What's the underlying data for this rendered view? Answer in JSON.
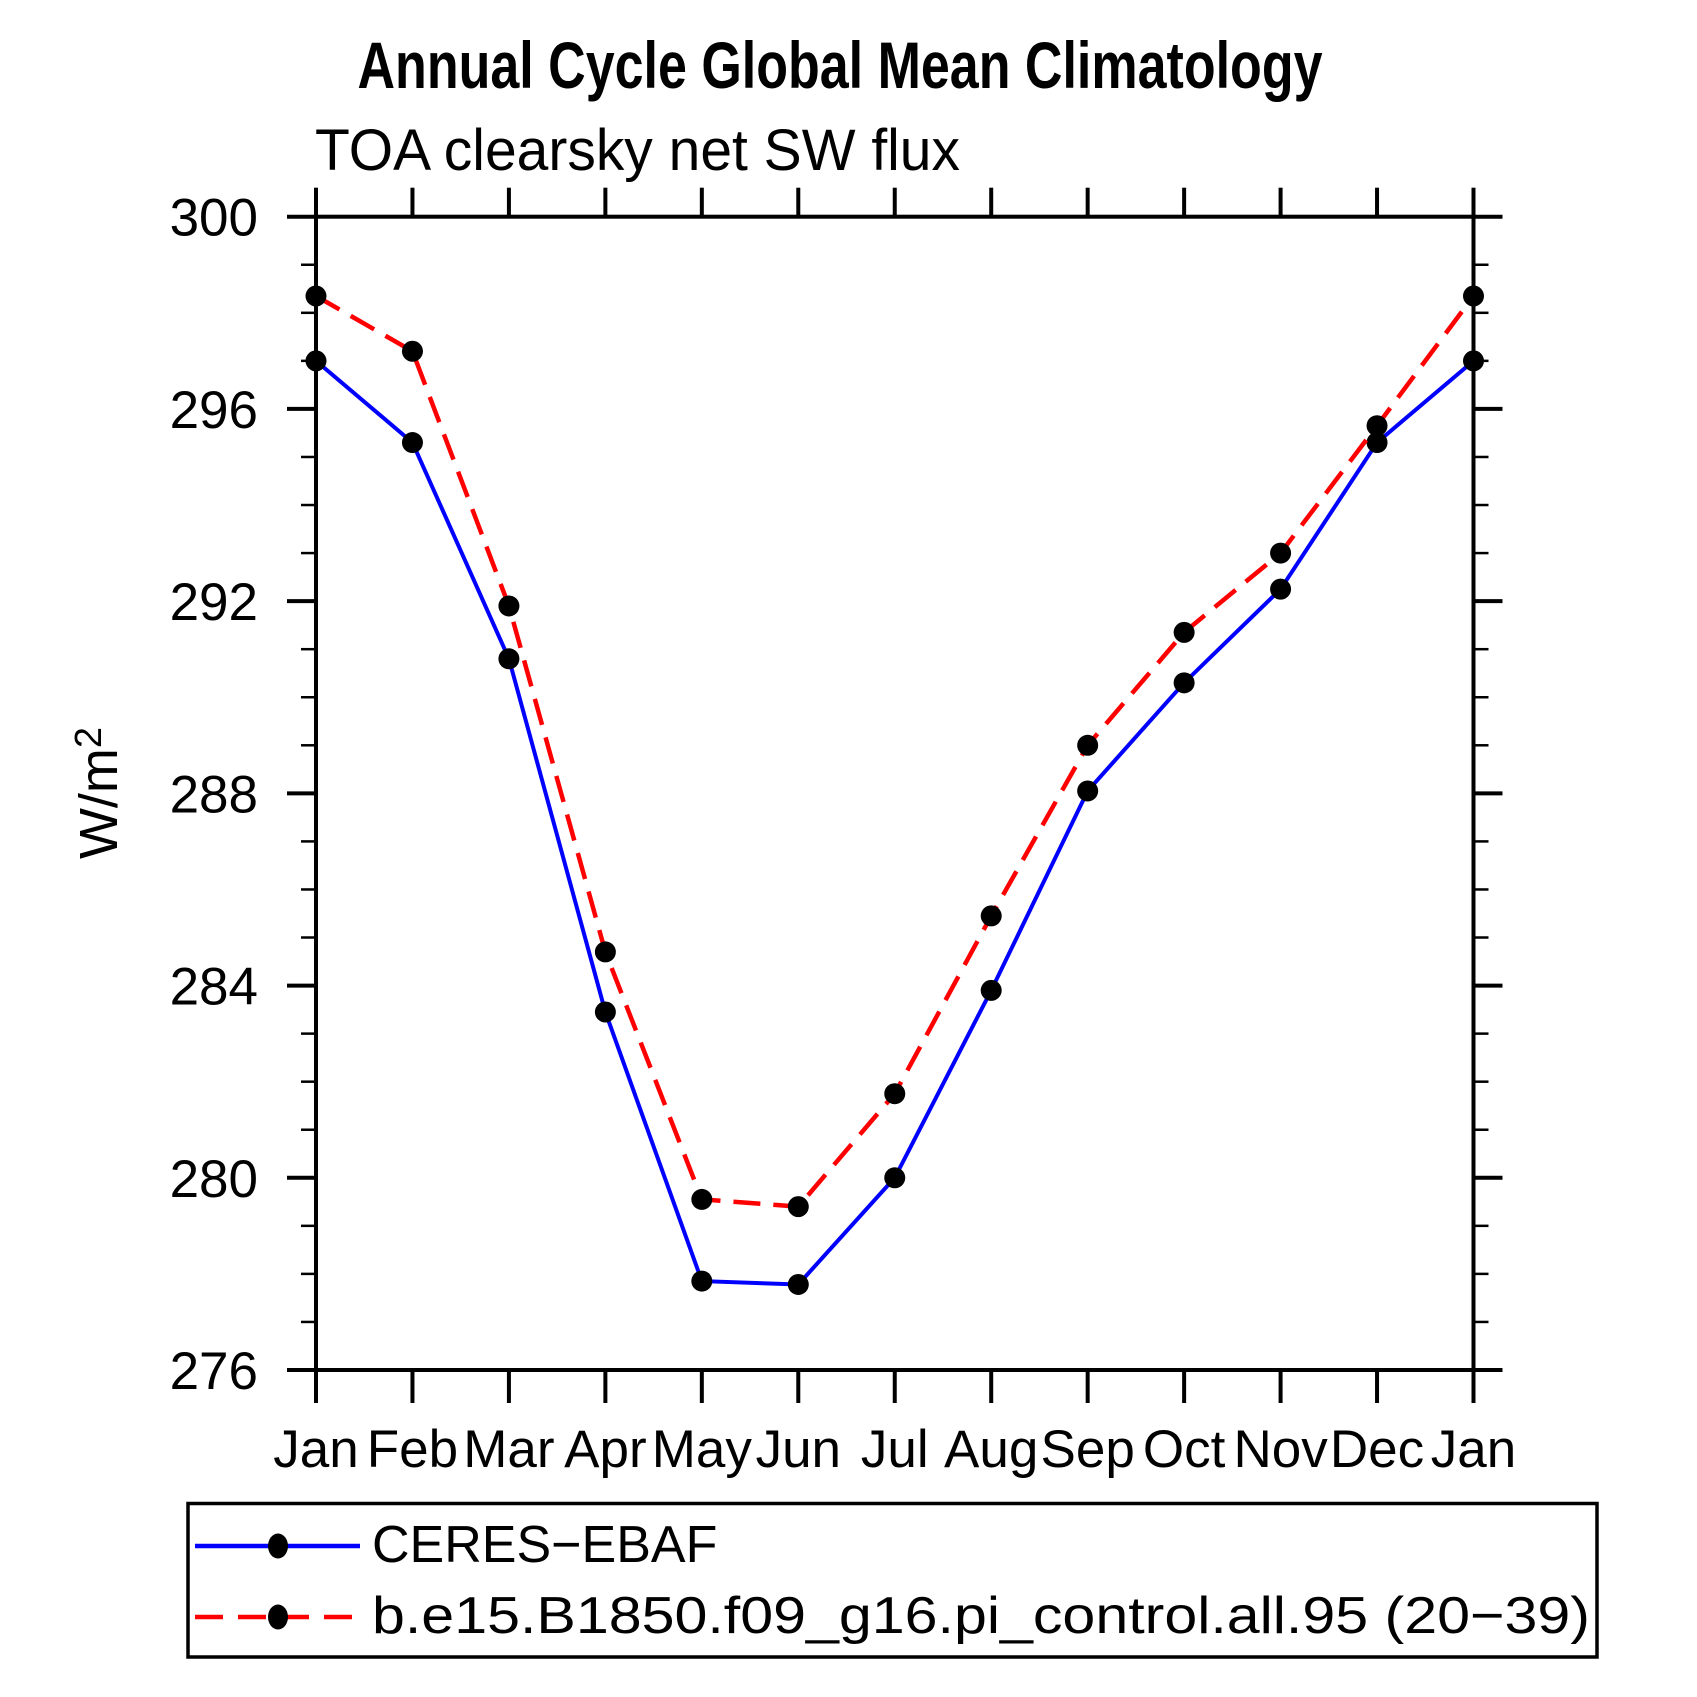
{
  "chart_data": {
    "type": "line",
    "title": "Annual Cycle Global Mean Climatology",
    "subtitle": "TOA clearsky net SW flux",
    "ylabel": "W/m²",
    "ylabel_base": "W/m",
    "ylabel_exp": "2",
    "categories": [
      "Jan",
      "Feb",
      "Mar",
      "Apr",
      "May",
      "Jun",
      "Jul",
      "Aug",
      "Sep",
      "Oct",
      "Nov",
      "Dec",
      "Jan"
    ],
    "ylim": [
      276,
      300
    ],
    "ytick_major_interval": 4,
    "ytick_minor_interval": 1,
    "ytick_labels": [
      "276",
      "280",
      "284",
      "288",
      "292",
      "296",
      "300"
    ],
    "grid": false,
    "legend_position": "bottom-left-box",
    "series": [
      {
        "name": "CERES−EBAF",
        "color": "#0000ff",
        "line_style": "solid",
        "marker": "filled-circle",
        "marker_color": "#000000",
        "values": [
          297.0,
          295.3,
          290.8,
          283.45,
          277.85,
          277.78,
          280.0,
          283.9,
          288.05,
          290.3,
          292.25,
          295.3,
          297.0
        ]
      },
      {
        "name": "b.e15.B1850.f09_g16.pi_control.all.95 (20−39)",
        "color": "#ff0000",
        "line_style": "dashed",
        "marker": "filled-circle",
        "marker_color": "#000000",
        "values": [
          298.35,
          297.2,
          291.9,
          284.7,
          279.55,
          279.4,
          281.75,
          285.45,
          289.0,
          291.35,
          293.0,
          295.65,
          298.35
        ]
      }
    ]
  }
}
